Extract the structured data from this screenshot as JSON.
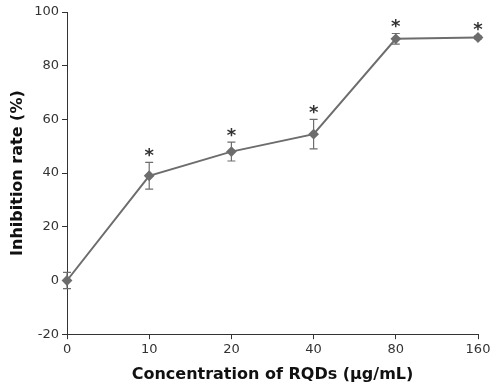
{
  "chart_data": {
    "type": "line",
    "x_label": "Concentration of RQDs (μg/mL)",
    "y_label": "Inhibition rate (%)",
    "categories": [
      "0",
      "10",
      "20",
      "40",
      "80",
      "160"
    ],
    "values": [
      0,
      39,
      48,
      54.5,
      90,
      90.5
    ],
    "errors": [
      3,
      5,
      3.5,
      5.5,
      2,
      0.5
    ],
    "annotations": [
      null,
      "*",
      "*",
      "*",
      "*",
      "*"
    ],
    "color": "#6d6d6d",
    "marker": "diamond",
    "ylim": [
      -20,
      100
    ],
    "yticks": [
      -20,
      0,
      20,
      40,
      60,
      80,
      100
    ],
    "grid": false
  }
}
